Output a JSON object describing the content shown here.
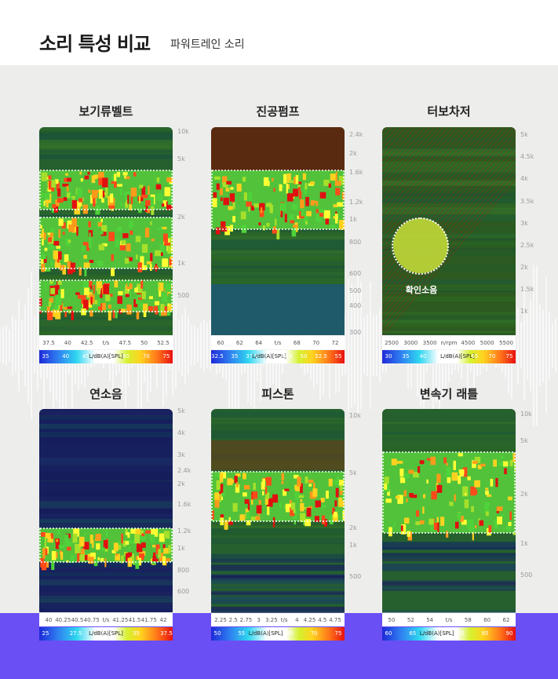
{
  "header": {
    "title": "소리 특성 비교",
    "subtitle": "파워트레인 소리"
  },
  "panels": [
    {
      "title": "보기류벨트",
      "y_ticks": [
        "10k",
        "5k",
        "2k",
        "1k",
        "500"
      ],
      "x_ticks": [
        "37.5",
        "40",
        "42.5",
        "t/s",
        "47.5",
        "50",
        "52.5"
      ],
      "colorbar": [
        "35",
        "40",
        "45",
        "L/dB(A)[SPL]",
        "65",
        "70",
        "75"
      ]
    },
    {
      "title": "진공펌프",
      "y_ticks": [
        "2.4k",
        "2k",
        "1.6k",
        "1.2k",
        "1k",
        "800",
        "600",
        "500",
        "400",
        "300"
      ],
      "x_ticks": [
        "60",
        "62",
        "64",
        "t/s",
        "68",
        "70",
        "72"
      ],
      "colorbar": [
        "32.5",
        "35",
        "37.5",
        "L/dB(A)[SPL]",
        "47.5",
        "50",
        "52.5",
        "55"
      ]
    },
    {
      "title": "터보차저",
      "y_ticks": [
        "5k",
        "4.5k",
        "4k",
        "3.5k",
        "3k",
        "2.5k",
        "2k",
        "1.5k",
        "1k"
      ],
      "x_ticks": [
        "2500",
        "3000",
        "3500",
        "n/rpm",
        "4500",
        "5000",
        "5500"
      ],
      "colorbar": [
        "30",
        "35",
        "40",
        "45",
        "L/dB(A)[SPL]",
        "65",
        "70",
        "75"
      ],
      "callout": "확인소음"
    },
    {
      "title": "연소음",
      "y_ticks": [
        "5k",
        "4k",
        "3k",
        "2.4k",
        "2k",
        "1.6k",
        "1.2k",
        "1k",
        "800",
        "600"
      ],
      "x_ticks": [
        "40",
        "40.25",
        "40.5",
        "40.75",
        "t/s",
        "41.25",
        "41.5",
        "41.75",
        "42"
      ],
      "colorbar": [
        "25",
        "27.5",
        "L/dB(A)[SPL]",
        "35",
        "37.5"
      ]
    },
    {
      "title": "피스톤",
      "y_ticks": [
        "10k",
        "5k",
        "2k",
        "1k",
        "500"
      ],
      "x_ticks": [
        "2.25",
        "2.5",
        "2.75",
        "3",
        "3.25",
        "t/s",
        "4",
        "4.25",
        "4.5",
        "4.75"
      ],
      "colorbar": [
        "50",
        "55",
        "L/dB(A)[SPL]",
        "65",
        "70",
        "75"
      ]
    },
    {
      "title": "변속기 래틀",
      "y_ticks": [
        "10k",
        "5k",
        "2k",
        "1k",
        "500"
      ],
      "x_ticks": [
        "50",
        "52",
        "54",
        "t/s",
        "58",
        "60",
        "62"
      ],
      "colorbar": [
        "60",
        "65",
        "L/dB(A)[SPL]",
        "80",
        "85",
        "90"
      ]
    }
  ]
}
